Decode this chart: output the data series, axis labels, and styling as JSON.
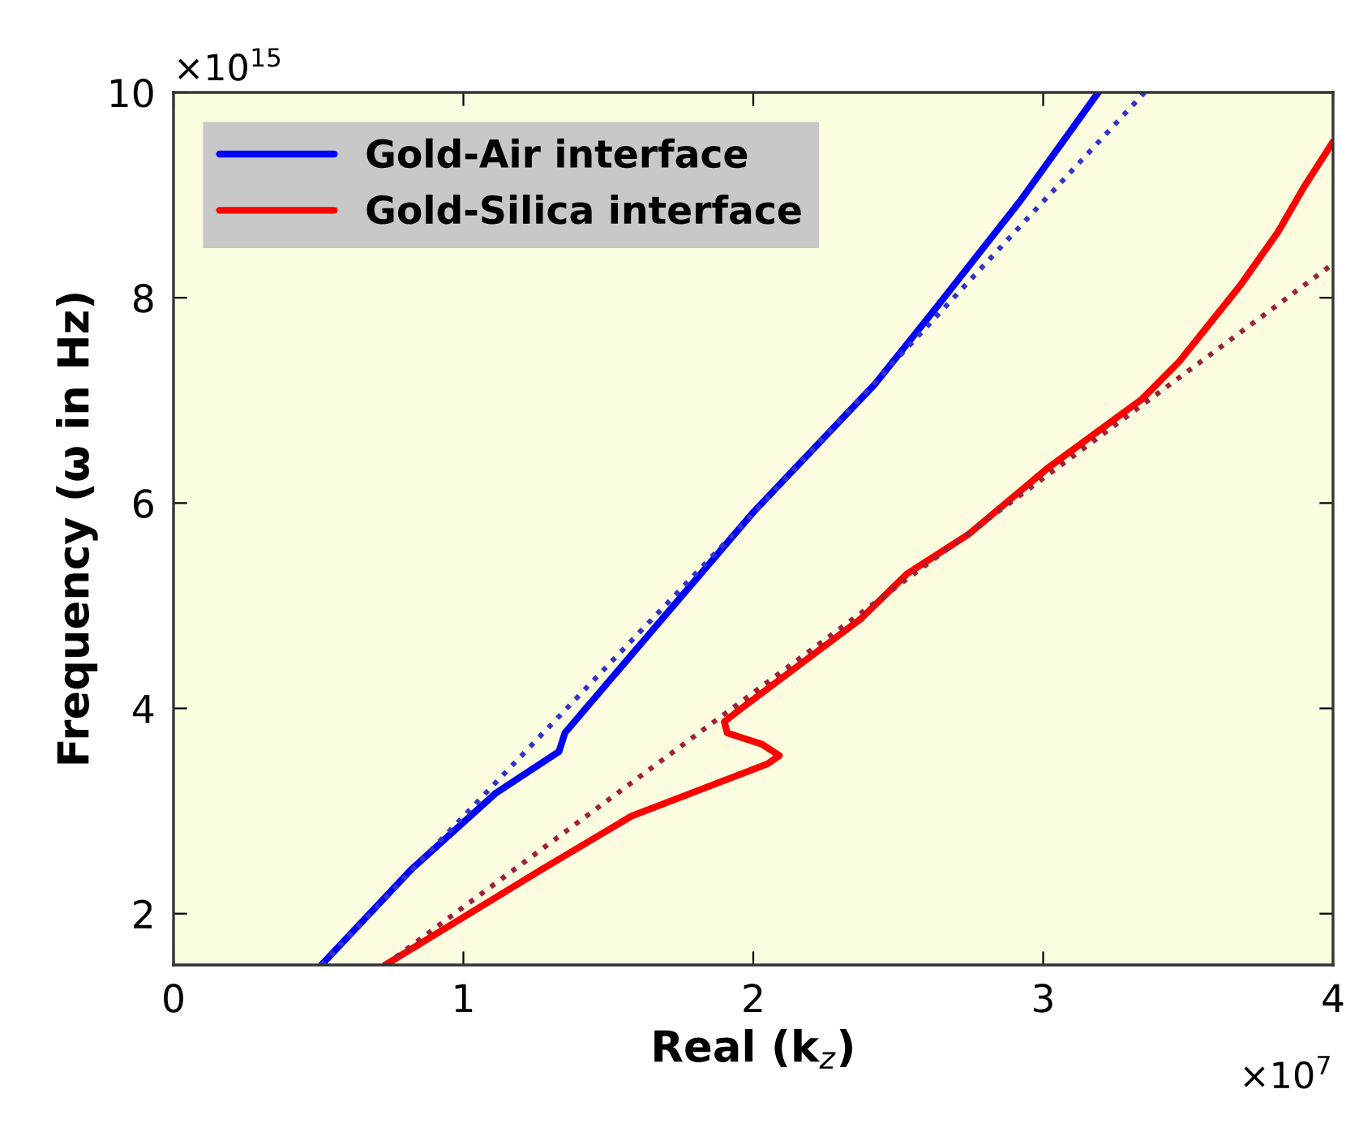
{
  "chart_data": {
    "type": "line",
    "xlabel": "Real (k$_{z}$)",
    "ylabel": "Frequency (ω in Hz)",
    "xlim": [
      0,
      4
    ],
    "xticks": [
      0,
      1,
      2,
      3,
      4
    ],
    "ylim": [
      1.5,
      10
    ],
    "yticks": [
      2,
      4,
      6,
      8,
      10
    ],
    "grid": false,
    "legend": "top left",
    "annotations": [
      "×10$^{15}$",
      "×10$^{7}$"
    ],
    "series": [
      {
        "name": "Gold-Air interface",
        "color": "#0000ff",
        "line_style": "solid",
        "x": [
          0.51,
          0.82,
          1.11,
          1.33,
          1.35,
          1.64,
          2.0,
          2.42,
          2.63,
          2.92,
          3.19
        ],
        "values": [
          1.5,
          2.43,
          3.17,
          3.58,
          3.76,
          4.72,
          5.91,
          7.16,
          7.9,
          8.94,
          10.0
        ]
      },
      {
        "name": "Gold-Silica interface",
        "color": "#ff0000",
        "line_style": "solid",
        "x": [
          0.73,
          1.27,
          1.58,
          2.05,
          2.09,
          2.03,
          1.91,
          1.9,
          1.95,
          2.37,
          2.53,
          2.74,
          3.02,
          3.34,
          3.47,
          3.68,
          3.81,
          3.9,
          4.0
        ],
        "values": [
          1.5,
          2.43,
          2.95,
          3.46,
          3.54,
          3.65,
          3.76,
          3.87,
          3.98,
          4.87,
          5.31,
          5.69,
          6.35,
          7.01,
          7.38,
          8.12,
          8.64,
          9.08,
          9.52
        ]
      },
      {
        "color": "#3333cc",
        "line_style": "dotted",
        "x": [
          0.51,
          2.0,
          3.35
        ],
        "values": [
          1.5,
          5.9,
          10.0
        ]
      },
      {
        "color": "#a0203a",
        "line_style": "dotted",
        "x": [
          0.73,
          4.0
        ],
        "values": [
          1.5,
          8.33
        ]
      }
    ]
  }
}
